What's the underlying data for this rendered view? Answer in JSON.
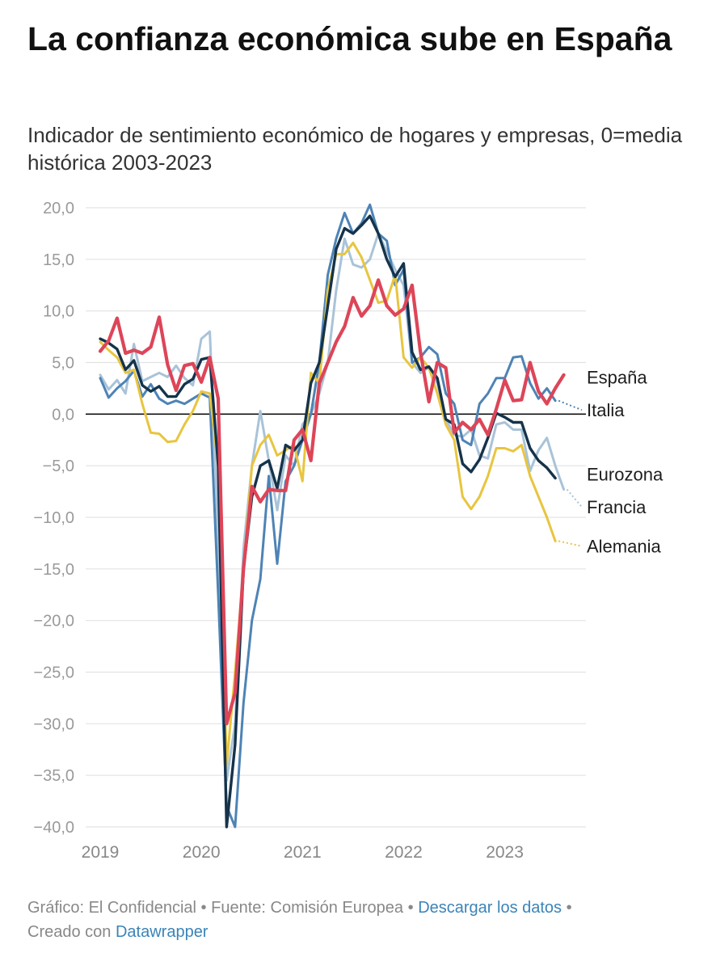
{
  "header": {
    "title": "La confianza económica sube en España",
    "subtitle": "Indicador de sentimiento económico de hogares y empresas, 0=media histórica 2003-2023"
  },
  "footer": {
    "chart_credit": "Gráfico: El Confidencial",
    "source": "Fuente: Comisión Europea",
    "download_link": "Descargar los datos",
    "created_with": "Creado con",
    "datawrapper_link": "Datawrapper",
    "separator": "•"
  },
  "chart_data": {
    "type": "line",
    "title": "La confianza económica sube en España",
    "subtitle": "Indicador de sentimiento económico de hogares y empresas, 0=media histórica 2003-2023",
    "xlabel": "",
    "ylabel": "",
    "ylim": [
      -40,
      20
    ],
    "y_ticks": [
      20,
      15,
      10,
      5,
      0,
      -5,
      -10,
      -15,
      -20,
      -25,
      -30,
      -35,
      -40
    ],
    "y_tick_labels": [
      "20,0",
      "15,0",
      "10,0",
      "5,0",
      "0,0",
      "−5,0",
      "−10,0",
      "−15,0",
      "−20,0",
      "−25,0",
      "−30,0",
      "−35,0",
      "−40,0"
    ],
    "x_start": "2019-01",
    "x_range_months": [
      0,
      56
    ],
    "x_ticks": [
      {
        "label": "2019",
        "month": 0
      },
      {
        "label": "2020",
        "month": 12
      },
      {
        "label": "2021",
        "month": 24
      },
      {
        "label": "2022",
        "month": 36
      },
      {
        "label": "2023",
        "month": 48
      }
    ],
    "grid": true,
    "zero_line": true,
    "series": [
      {
        "name": "Francia",
        "color": "#a9c3d8",
        "label_value": -8.3,
        "values": [
          3.8,
          2.4,
          3.3,
          2.0,
          6.8,
          3.2,
          3.6,
          4.0,
          3.6,
          4.7,
          3.5,
          2.8,
          7.3,
          8.0,
          -12.0,
          -35.5,
          -30.0,
          -13.0,
          -5.0,
          0.3,
          -4.5,
          -9.3,
          -4.0,
          -5.0,
          -1.0,
          0.0,
          2.0,
          5.0,
          12.0,
          17.0,
          14.5,
          14.2,
          15.0,
          17.5,
          15.8,
          14.0,
          12.5,
          5.0,
          4.0,
          4.5,
          3.0,
          -0.5,
          -2.0,
          -2.2,
          -1.5,
          -4.0,
          -4.3,
          -1.0,
          -0.8,
          -1.5,
          -1.5,
          -5.5,
          -3.5,
          -2.3,
          -5.0,
          -7.3
        ]
      },
      {
        "name": "Italia",
        "color": "#4e83b5",
        "label_value": 1.3,
        "values": [
          3.5,
          1.6,
          2.5,
          3.2,
          4.2,
          1.7,
          2.9,
          1.5,
          1.0,
          1.3,
          1.0,
          1.5,
          2.0,
          1.6,
          -17.5,
          -38.0,
          -40.0,
          -28.0,
          -20.0,
          -16.0,
          -6.0,
          -14.5,
          -6.5,
          -5.0,
          -2.5,
          0.0,
          5.0,
          13.5,
          17.0,
          19.5,
          17.5,
          18.5,
          20.3,
          17.5,
          16.8,
          12.5,
          14.0,
          5.0,
          5.5,
          6.5,
          5.8,
          2.0,
          1.0,
          -2.5,
          -3.0,
          1.0,
          2.0,
          3.5,
          3.5,
          5.5,
          5.6,
          3.0,
          1.5,
          2.5,
          1.3
        ]
      },
      {
        "name": "Alemania",
        "color": "#e8c53f",
        "label_value": -12.3,
        "values": [
          7.0,
          6.2,
          5.5,
          4.0,
          4.3,
          1.0,
          -1.8,
          -1.9,
          -2.7,
          -2.6,
          -1.0,
          0.3,
          2.2,
          2.0,
          -5.0,
          -34.0,
          -25.0,
          -15.0,
          -5.0,
          -3.0,
          -2.0,
          -4.0,
          -3.5,
          -3.0,
          -6.5,
          4.0,
          3.0,
          12.0,
          15.5,
          15.5,
          16.6,
          15.2,
          13.0,
          10.8,
          11.0,
          13.5,
          5.5,
          4.5,
          5.5,
          4.5,
          2.0,
          -1.0,
          -2.5,
          -8.0,
          -9.2,
          -8.0,
          -6.0,
          -3.3,
          -3.3,
          -3.6,
          -3.0,
          -6.0,
          -8.0,
          -10.0,
          -12.3
        ]
      },
      {
        "name": "Eurozona",
        "color": "#15334a",
        "label_value": -6.2,
        "values": [
          7.3,
          6.9,
          6.3,
          4.3,
          5.2,
          2.8,
          2.2,
          2.7,
          1.7,
          1.7,
          2.9,
          3.4,
          5.3,
          5.5,
          -5.0,
          -40.0,
          -32.0,
          -15.0,
          -8.0,
          -5.0,
          -4.5,
          -7.2,
          -3.0,
          -3.5,
          -2.5,
          3.0,
          5.0,
          10.5,
          16.0,
          18.0,
          17.5,
          18.3,
          19.2,
          17.5,
          15.0,
          13.3,
          14.6,
          6.0,
          4.3,
          4.6,
          3.5,
          -0.5,
          -1.0,
          -4.8,
          -5.6,
          -4.4,
          -2.3,
          0.1,
          -0.3,
          -0.8,
          -0.8,
          -3.3,
          -4.5,
          -5.2,
          -6.2
        ]
      },
      {
        "name": "España",
        "color": "#dd4558",
        "label_value": 3.8,
        "values": [
          6.1,
          7.1,
          9.3,
          5.9,
          6.2,
          5.9,
          6.5,
          9.4,
          4.8,
          2.3,
          4.7,
          4.9,
          3.1,
          5.5,
          1.5,
          -30.0,
          -27.0,
          -15.0,
          -7.0,
          -8.5,
          -7.3,
          -7.4,
          -7.4,
          -2.5,
          -1.5,
          -4.5,
          3.0,
          5.0,
          7.0,
          8.5,
          11.3,
          9.5,
          10.5,
          13.0,
          10.5,
          9.6,
          10.2,
          12.5,
          6.0,
          1.2,
          5.0,
          4.5,
          -1.8,
          -0.8,
          -1.5,
          -0.5,
          -2.0,
          0.5,
          3.3,
          1.3,
          1.4,
          5.0,
          2.2,
          1.0,
          2.5,
          3.8
        ]
      }
    ],
    "end_labels": [
      {
        "name": "España"
      },
      {
        "name": "Italia"
      },
      {
        "name": "Eurozona"
      },
      {
        "name": "Francia"
      },
      {
        "name": "Alemania"
      }
    ]
  }
}
